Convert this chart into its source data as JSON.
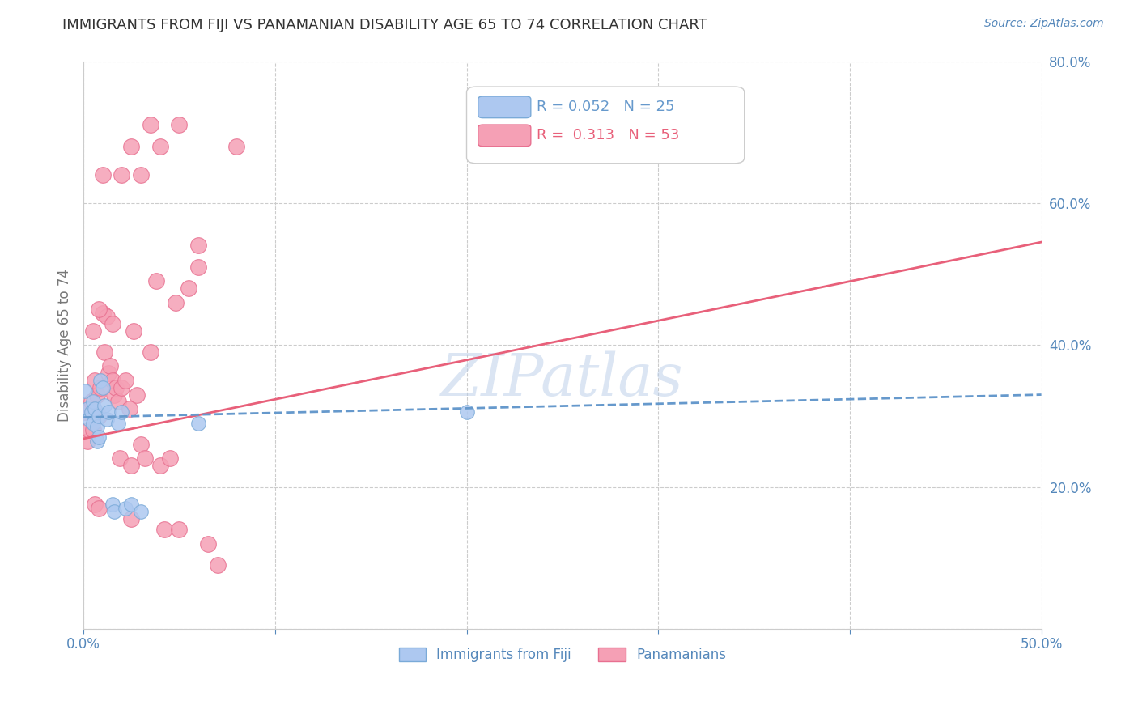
{
  "title": "IMMIGRANTS FROM FIJI VS PANAMANIAN DISABILITY AGE 65 TO 74 CORRELATION CHART",
  "source": "Source: ZipAtlas.com",
  "ylabel": "Disability Age 65 to 74",
  "xlim": [
    0.0,
    0.5
  ],
  "ylim": [
    0.0,
    0.8
  ],
  "xticks": [
    0.0,
    0.1,
    0.2,
    0.3,
    0.4,
    0.5
  ],
  "yticks": [
    0.0,
    0.2,
    0.4,
    0.6,
    0.8
  ],
  "xtick_labels": [
    "0.0%",
    "",
    "",
    "",
    "",
    "50.0%"
  ],
  "ytick_labels": [
    "",
    "20.0%",
    "40.0%",
    "60.0%",
    "80.0%"
  ],
  "fiji_R": 0.052,
  "fiji_N": 25,
  "panama_R": 0.313,
  "panama_N": 53,
  "fiji_color": "#adc8f0",
  "panama_color": "#f5a0b5",
  "fiji_edge_color": "#7aaad8",
  "panama_edge_color": "#e87090",
  "fiji_line_color": "#6699cc",
  "panama_line_color": "#e8607a",
  "watermark": "ZIPatlas",
  "background_color": "#ffffff",
  "grid_color": "#cccccc",
  "axis_label_color": "#5588bb",
  "title_color": "#333333",
  "fiji_line_x0": 0.0,
  "fiji_line_x1": 0.5,
  "fiji_line_y0": 0.298,
  "fiji_line_y1": 0.33,
  "panama_line_x0": 0.0,
  "panama_line_x1": 0.5,
  "panama_line_y0": 0.268,
  "panama_line_y1": 0.545,
  "fiji_scatter_x": [
    0.001,
    0.002,
    0.003,
    0.004,
    0.005,
    0.005,
    0.006,
    0.007,
    0.007,
    0.008,
    0.008,
    0.009,
    0.01,
    0.011,
    0.012,
    0.013,
    0.015,
    0.016,
    0.018,
    0.02,
    0.022,
    0.025,
    0.03,
    0.06,
    0.2
  ],
  "fiji_scatter_y": [
    0.335,
    0.31,
    0.295,
    0.305,
    0.32,
    0.29,
    0.31,
    0.285,
    0.265,
    0.3,
    0.27,
    0.35,
    0.34,
    0.315,
    0.295,
    0.305,
    0.175,
    0.165,
    0.29,
    0.305,
    0.17,
    0.175,
    0.165,
    0.29,
    0.305
  ],
  "panama_scatter_x": [
    0.001,
    0.002,
    0.003,
    0.004,
    0.005,
    0.005,
    0.006,
    0.007,
    0.008,
    0.009,
    0.01,
    0.011,
    0.012,
    0.013,
    0.014,
    0.015,
    0.016,
    0.017,
    0.018,
    0.019,
    0.02,
    0.022,
    0.024,
    0.025,
    0.026,
    0.028,
    0.03,
    0.032,
    0.035,
    0.038,
    0.04,
    0.042,
    0.045,
    0.048,
    0.05,
    0.055,
    0.06,
    0.065,
    0.07,
    0.08,
    0.008,
    0.01,
    0.015,
    0.02,
    0.025,
    0.03,
    0.035,
    0.04,
    0.05,
    0.06,
    0.006,
    0.008,
    0.025
  ],
  "panama_scatter_y": [
    0.305,
    0.265,
    0.28,
    0.32,
    0.42,
    0.28,
    0.35,
    0.33,
    0.3,
    0.34,
    0.445,
    0.39,
    0.44,
    0.36,
    0.37,
    0.35,
    0.33,
    0.34,
    0.32,
    0.24,
    0.34,
    0.35,
    0.31,
    0.23,
    0.42,
    0.33,
    0.26,
    0.24,
    0.39,
    0.49,
    0.23,
    0.14,
    0.24,
    0.46,
    0.14,
    0.48,
    0.54,
    0.12,
    0.09,
    0.68,
    0.45,
    0.64,
    0.43,
    0.64,
    0.68,
    0.64,
    0.71,
    0.68,
    0.71,
    0.51,
    0.175,
    0.17,
    0.155
  ]
}
